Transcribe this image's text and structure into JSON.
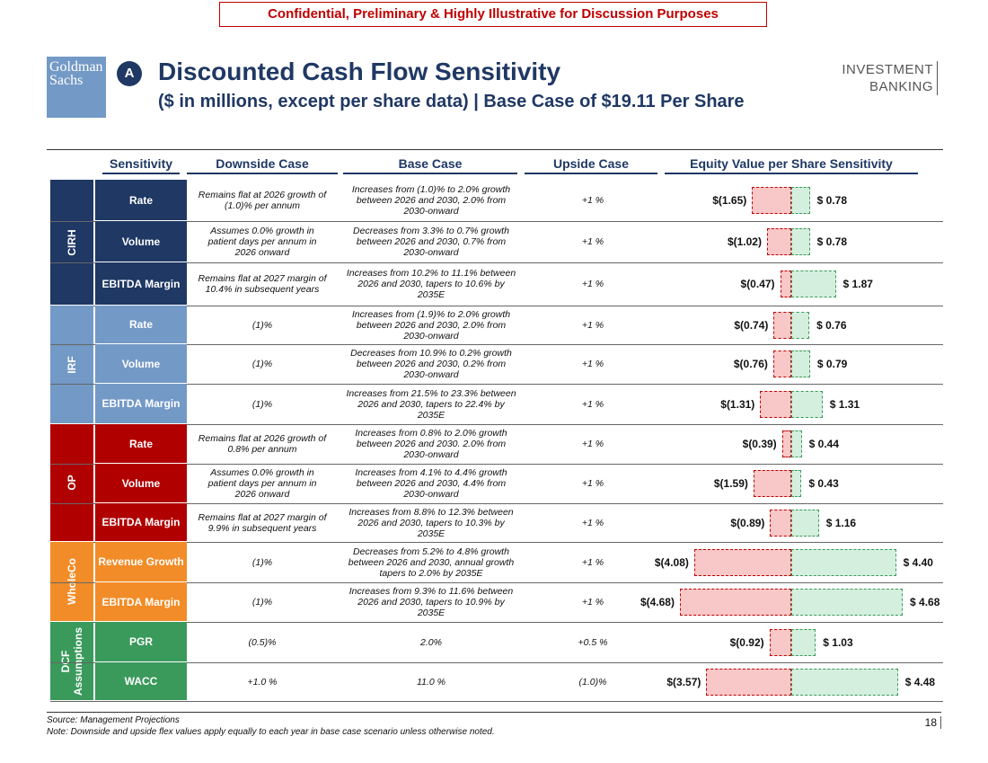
{
  "confidential": "Confidential, Preliminary & Highly Illustrative for Discussion Purposes",
  "logo": {
    "line1": "Goldman",
    "line2": "Sachs"
  },
  "badge": "A",
  "title": "Discounted Cash Flow Sensitivity",
  "subtitle": "($ in millions, except per share data) | Base Case of $19.11 Per Share",
  "brand": {
    "line1": "INVESTMENT",
    "line2": "BANKING"
  },
  "headers": {
    "sensitivity": "Sensitivity",
    "downside": "Downside Case",
    "base": "Base Case",
    "upside": "Upside Case",
    "equity": "Equity Value per Share Sensitivity"
  },
  "colors": {
    "CIRH": "#1f3864",
    "IRF": "#7399c6",
    "OP": "#b00000",
    "WholeCo": "#f28c28",
    "DCF": "#3a9a5b"
  },
  "groups": [
    {
      "key": "CIRH",
      "label": "CIRH",
      "rows": [
        {
          "sensitivity": "Rate",
          "downside": "Remains flat at 2026 growth of (1.0)% per annum",
          "base": "Increases from (1.0)% to 2.0% growth between 2026 and 2030, 2.0% from 2030-onward",
          "upside": "+1 %",
          "neg": -1.65,
          "pos": 0.78,
          "neg_label": "$(1.65)",
          "pos_label": "$ 0.78"
        },
        {
          "sensitivity": "Volume",
          "downside": "Assumes 0.0% growth in patient days per annum in 2026 onward",
          "base": "Decreases from 3.3% to 0.7% growth between 2026 and 2030, 0.7% from 2030-onward",
          "upside": "+1 %",
          "neg": -1.02,
          "pos": 0.78,
          "neg_label": "$(1.02)",
          "pos_label": "$ 0.78"
        },
        {
          "sensitivity": "EBITDA Margin",
          "downside": "Remains flat at 2027 margin of 10.4% in subsequent years",
          "base": "Increases from 10.2% to 11.1% between 2026 and 2030, tapers to 10.6% by 2035E",
          "upside": "+1 %",
          "neg": -0.47,
          "pos": 1.87,
          "neg_label": "$(0.47)",
          "pos_label": "$ 1.87"
        }
      ]
    },
    {
      "key": "IRF",
      "label": "IRF",
      "rows": [
        {
          "sensitivity": "Rate",
          "downside": "(1)%",
          "base": "Increases from (1.9)% to 2.0% growth between 2026 and 2030, 2.0% from 2030-onward",
          "upside": "+1 %",
          "neg": -0.74,
          "pos": 0.76,
          "neg_label": "$(0.74)",
          "pos_label": "$ 0.76"
        },
        {
          "sensitivity": "Volume",
          "downside": "(1)%",
          "base": "Decreases from 10.9% to 0.2% growth between 2026 and 2030, 0.2% from 2030-onward",
          "upside": "+1 %",
          "neg": -0.76,
          "pos": 0.79,
          "neg_label": "$(0.76)",
          "pos_label": "$ 0.79"
        },
        {
          "sensitivity": "EBITDA Margin",
          "downside": "(1)%",
          "base": "Increases from 21.5% to 23.3% between 2026 and 2030, tapers to 22.4% by 2035E",
          "upside": "+1 %",
          "neg": -1.31,
          "pos": 1.31,
          "neg_label": "$(1.31)",
          "pos_label": "$ 1.31"
        }
      ]
    },
    {
      "key": "OP",
      "label": "OP",
      "rows": [
        {
          "sensitivity": "Rate",
          "downside": "Remains flat at 2026 growth of 0.8% per annum",
          "base": "Increases from 0.8% to 2.0% growth between 2026 and 2030. 2.0% from 2030-onward",
          "upside": "+1 %",
          "neg": -0.39,
          "pos": 0.44,
          "neg_label": "$(0.39)",
          "pos_label": "$ 0.44"
        },
        {
          "sensitivity": "Volume",
          "downside": "Assumes 0.0% growth in patient days per annum in 2026 onward",
          "base": "Increases from 4.1% to 4.4% growth between 2026 and 2030, 4.4% from 2030-onward",
          "upside": "+1 %",
          "neg": -1.59,
          "pos": 0.43,
          "neg_label": "$(1.59)",
          "pos_label": "$ 0.43"
        },
        {
          "sensitivity": "EBITDA Margin",
          "downside": "Remains flat at 2027 margin of 9.9% in subsequent years",
          "base": "Increases from 8.8% to 12.3% between 2026 and 2030, tapers to 10.3% by 2035E",
          "upside": "+1 %",
          "neg": -0.89,
          "pos": 1.16,
          "neg_label": "$(0.89)",
          "pos_label": "$ 1.16"
        }
      ]
    },
    {
      "key": "WholeCo",
      "label": "WholeCo",
      "rows": [
        {
          "sensitivity": "Revenue Growth",
          "downside": "(1)%",
          "base": "Decreases from 5.2% to 4.8% growth between 2026 and 2030, annual growth tapers to 2.0% by 2035E",
          "upside": "+1 %",
          "neg": -4.08,
          "pos": 4.4,
          "neg_label": "$(4.08)",
          "pos_label": "$ 4.40"
        },
        {
          "sensitivity": "EBITDA Margin",
          "downside": "(1)%",
          "base": "Increases from 9.3% to 11.6% between 2026 and 2030, tapers to 10.9% by 2035E",
          "upside": "+1 %",
          "neg": -4.68,
          "pos": 4.68,
          "neg_label": "$(4.68)",
          "pos_label": "$ 4.68"
        }
      ]
    },
    {
      "key": "DCF",
      "label": "DCF Assumptions",
      "rows": [
        {
          "sensitivity": "PGR",
          "downside": "(0.5)%",
          "base": "2.0%",
          "upside": "+0.5 %",
          "neg": -0.92,
          "pos": 1.03,
          "neg_label": "$(0.92)",
          "pos_label": "$ 1.03"
        },
        {
          "sensitivity": "WACC",
          "downside": "+1.0 %",
          "base": "11.0 %",
          "upside": "(1.0)%",
          "neg": -3.57,
          "pos": 4.48,
          "neg_label": "$(3.57)",
          "pos_label": "$ 4.48"
        }
      ]
    }
  ],
  "footnotes": {
    "source": "Source: Management Projections",
    "note": "Note: Downside and upside flex values apply equally to each year in base case scenario unless otherwise noted."
  },
  "page_number": "18"
}
